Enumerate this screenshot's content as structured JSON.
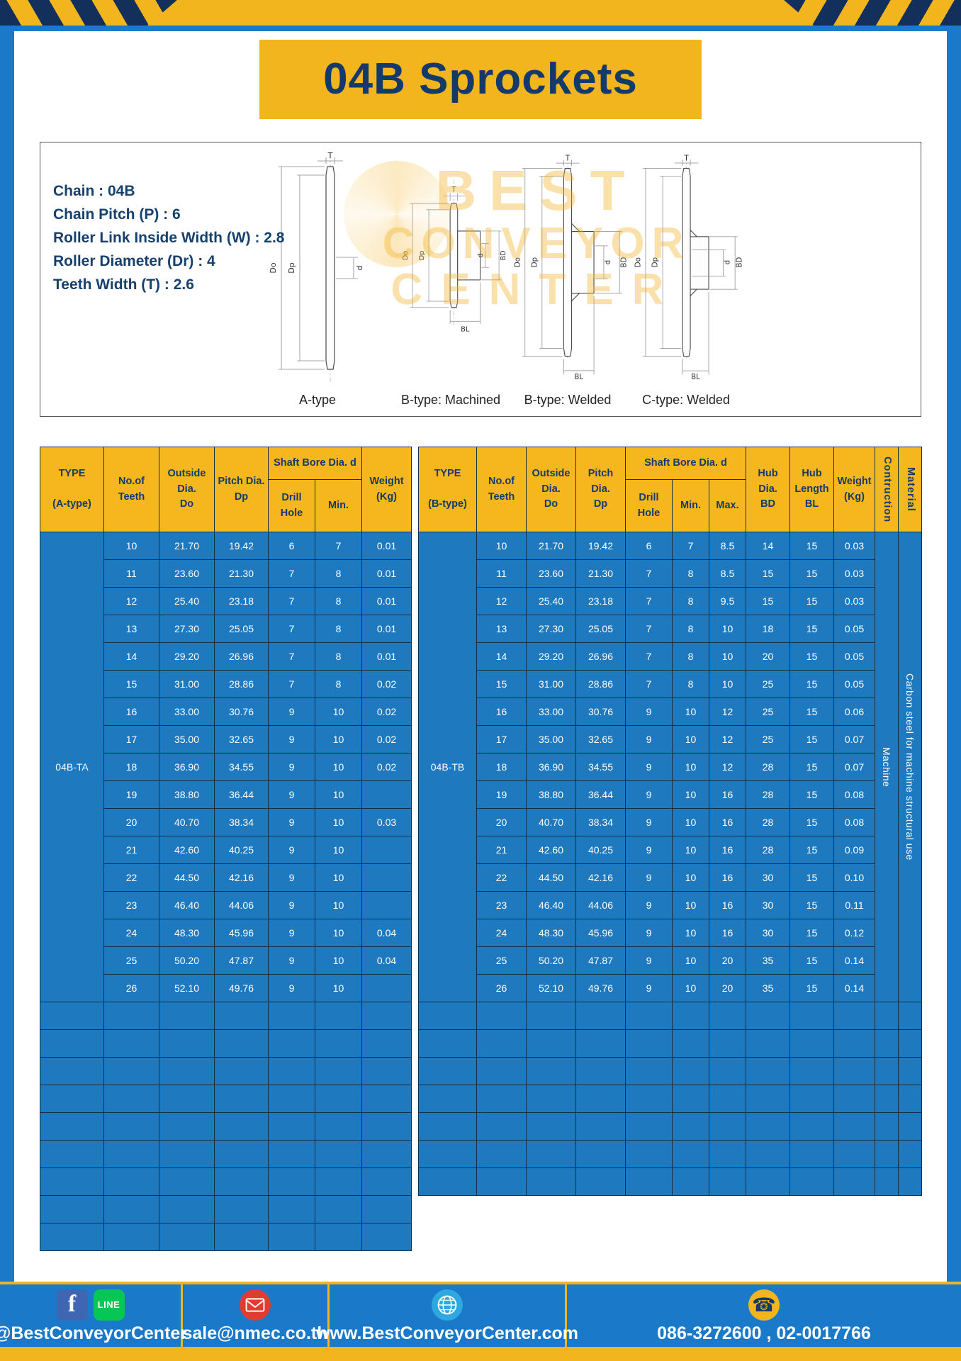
{
  "banner": {
    "title": "04B Sprockets"
  },
  "specs": {
    "lines": [
      "Chain : 04B",
      "Chain Pitch (P) : 6",
      "Roller Link Inside Width (W) : 2.8",
      "Roller Diameter (Dr) : 4",
      "Teeth Width (T) : 2.6"
    ]
  },
  "watermark": {
    "line1": "BEST",
    "line2": "CONVEYOR",
    "line3": "CENTER"
  },
  "drawings": {
    "captions": [
      "A-type",
      "B-type: Machined",
      "B-type: Welded",
      "C-type: Welded"
    ],
    "dims": {
      "T": "T",
      "Do": "Do",
      "Dp": "Dp",
      "d": "d",
      "BD": "BD",
      "BL": "BL"
    }
  },
  "table_a": {
    "headers": {
      "type": "TYPE\n\n(A-type)",
      "teeth": "No.of\nTeeth",
      "outside": "Outside\nDia.\nDo",
      "pitch": "Pitch Dia.\nDp",
      "shaft_group": "Shaft Bore Dia. d",
      "drill": "Drill Hole",
      "min": "Min.",
      "weight": "Weight\n(Kg)"
    },
    "type_label": "04B-TA",
    "rows": [
      [
        "10",
        "21.70",
        "19.42",
        "6",
        "7",
        "0.01"
      ],
      [
        "11",
        "23.60",
        "21.30",
        "7",
        "8",
        "0.01"
      ],
      [
        "12",
        "25.40",
        "23.18",
        "7",
        "8",
        "0.01"
      ],
      [
        "13",
        "27.30",
        "25.05",
        "7",
        "8",
        "0.01"
      ],
      [
        "14",
        "29.20",
        "26.96",
        "7",
        "8",
        "0.01"
      ],
      [
        "15",
        "31.00",
        "28.86",
        "7",
        "8",
        "0.02"
      ],
      [
        "16",
        "33.00",
        "30.76",
        "9",
        "10",
        "0.02"
      ],
      [
        "17",
        "35.00",
        "32.65",
        "9",
        "10",
        "0.02"
      ],
      [
        "18",
        "36.90",
        "34.55",
        "9",
        "10",
        "0.02"
      ],
      [
        "19",
        "38.80",
        "36.44",
        "9",
        "10",
        ""
      ],
      [
        "20",
        "40.70",
        "38.34",
        "9",
        "10",
        "0.03"
      ],
      [
        "21",
        "42.60",
        "40.25",
        "9",
        "10",
        ""
      ],
      [
        "22",
        "44.50",
        "42.16",
        "9",
        "10",
        ""
      ],
      [
        "23",
        "46.40",
        "44.06",
        "9",
        "10",
        ""
      ],
      [
        "24",
        "48.30",
        "45.96",
        "9",
        "10",
        "0.04"
      ],
      [
        "25",
        "50.20",
        "47.87",
        "9",
        "10",
        "0.04"
      ],
      [
        "26",
        "52.10",
        "49.76",
        "9",
        "10",
        ""
      ]
    ],
    "empty_rows": 9
  },
  "table_b": {
    "headers": {
      "type": "TYPE\n\n(B-type)",
      "teeth": "No.of\nTeeth",
      "outside": "Outside\nDia.\nDo",
      "pitch": "Pitch Dia.\nDp",
      "shaft_group": "Shaft Bore Dia. d",
      "drill": "Drill Hole",
      "min": "Min.",
      "max": "Max.",
      "hub_dia": "Hub Dia.\nBD",
      "hub_len": "Hub\nLength\nBL",
      "weight": "Weight\n(Kg)",
      "construction": "Contruction",
      "material": "Material"
    },
    "type_label": "04B-TB",
    "construction_value": "Machine",
    "material_value": "Carbon steel for machine structural use",
    "rows": [
      [
        "10",
        "21.70",
        "19.42",
        "6",
        "7",
        "8.5",
        "14",
        "15",
        "0.03"
      ],
      [
        "11",
        "23.60",
        "21.30",
        "7",
        "8",
        "8.5",
        "15",
        "15",
        "0.03"
      ],
      [
        "12",
        "25.40",
        "23.18",
        "7",
        "8",
        "9.5",
        "15",
        "15",
        "0.03"
      ],
      [
        "13",
        "27.30",
        "25.05",
        "7",
        "8",
        "10",
        "18",
        "15",
        "0.05"
      ],
      [
        "14",
        "29.20",
        "26.96",
        "7",
        "8",
        "10",
        "20",
        "15",
        "0.05"
      ],
      [
        "15",
        "31.00",
        "28.86",
        "7",
        "8",
        "10",
        "25",
        "15",
        "0.05"
      ],
      [
        "16",
        "33.00",
        "30.76",
        "9",
        "10",
        "12",
        "25",
        "15",
        "0.06"
      ],
      [
        "17",
        "35.00",
        "32.65",
        "9",
        "10",
        "12",
        "25",
        "15",
        "0.07"
      ],
      [
        "18",
        "36.90",
        "34.55",
        "9",
        "10",
        "12",
        "28",
        "15",
        "0.07"
      ],
      [
        "19",
        "38.80",
        "36.44",
        "9",
        "10",
        "16",
        "28",
        "15",
        "0.08"
      ],
      [
        "20",
        "40.70",
        "38.34",
        "9",
        "10",
        "16",
        "28",
        "15",
        "0.08"
      ],
      [
        "21",
        "42.60",
        "40.25",
        "9",
        "10",
        "16",
        "28",
        "15",
        "0.09"
      ],
      [
        "22",
        "44.50",
        "42.16",
        "9",
        "10",
        "16",
        "30",
        "15",
        "0.10"
      ],
      [
        "23",
        "46.40",
        "44.06",
        "9",
        "10",
        "16",
        "30",
        "15",
        "0.11"
      ],
      [
        "24",
        "48.30",
        "45.96",
        "9",
        "10",
        "16",
        "30",
        "15",
        "0.12"
      ],
      [
        "25",
        "50.20",
        "47.87",
        "9",
        "10",
        "20",
        "35",
        "15",
        "0.14"
      ],
      [
        "26",
        "52.10",
        "49.76",
        "9",
        "10",
        "20",
        "35",
        "15",
        "0.14"
      ]
    ],
    "empty_rows": 7
  },
  "footer": {
    "social_text": "@BestConveyorCenter",
    "email_text": "sale@nmec.co.th",
    "web_text": "www.BestConveyorCenter.com",
    "phone_text": "086-3272600 , 02-0017766"
  },
  "icons": {
    "facebook_glyph": "f",
    "line_glyph": "LINE",
    "phone_glyph": "☎"
  },
  "colors": {
    "frame_blue": "#1a7ac9",
    "table_blue": "#1f79bf",
    "accent_yellow": "#f2b51e",
    "navy": "#143a6b",
    "stripe_navy": "#132f5c"
  }
}
